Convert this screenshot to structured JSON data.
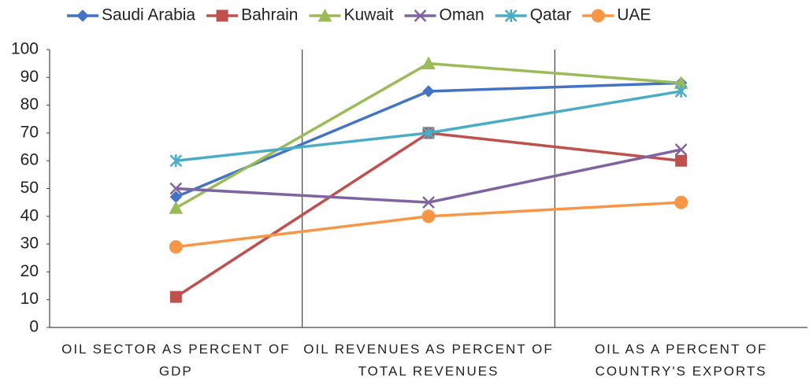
{
  "chart_data": {
    "type": "line",
    "categories": [
      "OIL SECTOR AS PERCENT OF GDP",
      "OIL REVENUES AS PERCENT OF TOTAL REVENUES",
      "OIL AS A PERCENT OF COUNTRY'S EXPORTS"
    ],
    "series": [
      {
        "name": "Saudi Arabia",
        "color": "#4472c4",
        "marker": "diamond",
        "values": [
          47,
          85,
          88
        ]
      },
      {
        "name": "Bahrain",
        "color": "#c0504d",
        "marker": "square",
        "values": [
          11,
          70,
          60
        ]
      },
      {
        "name": "Kuwait",
        "color": "#9bbb59",
        "marker": "triangle",
        "values": [
          43,
          95,
          88
        ]
      },
      {
        "name": "Oman",
        "color": "#8064a2",
        "marker": "x",
        "values": [
          50,
          45,
          64
        ]
      },
      {
        "name": "Qatar",
        "color": "#4bacc6",
        "marker": "star",
        "values": [
          60,
          70,
          85
        ]
      },
      {
        "name": "UAE",
        "color": "#f79646",
        "marker": "circle",
        "values": [
          29,
          40,
          45
        ]
      }
    ],
    "ylim": [
      0,
      100
    ],
    "yticks": [
      0,
      10,
      20,
      30,
      40,
      50,
      60,
      70,
      80,
      90,
      100
    ],
    "legend": "top"
  }
}
